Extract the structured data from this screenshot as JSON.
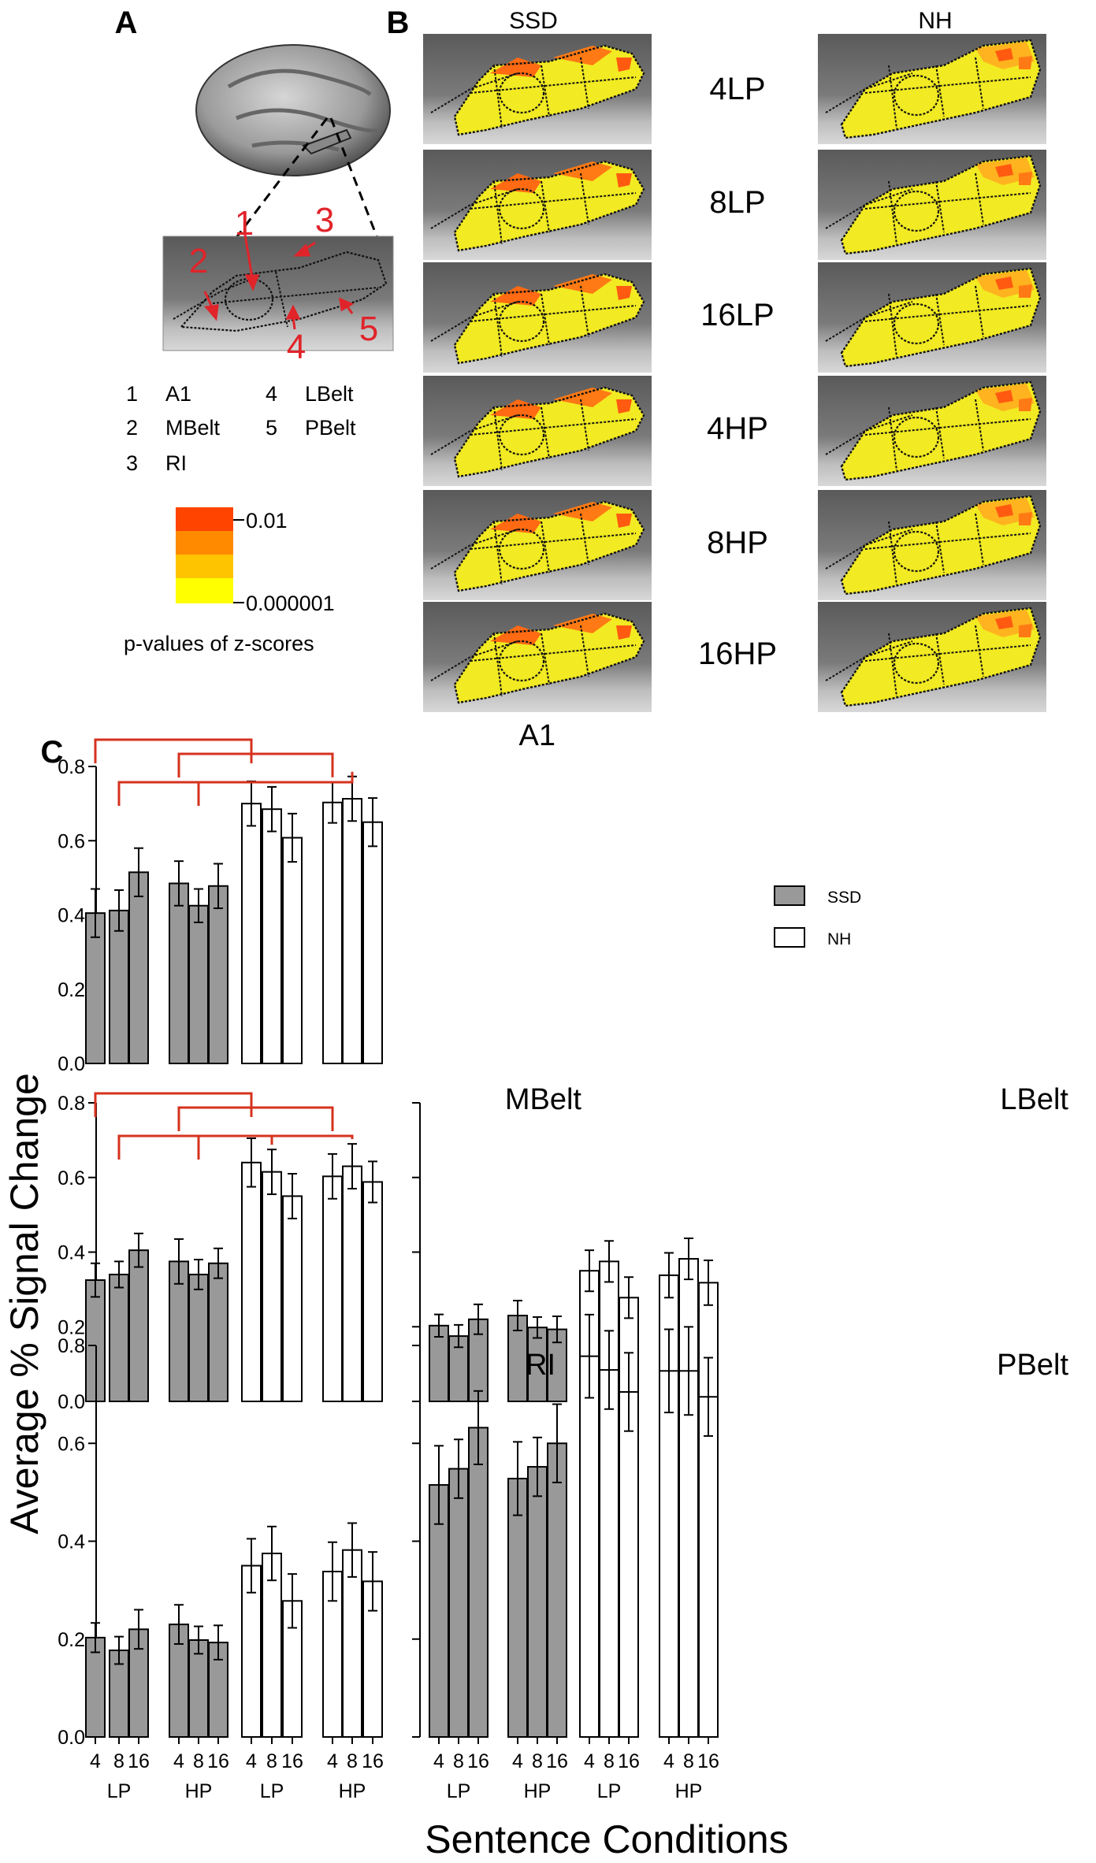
{
  "panels": {
    "a": "A",
    "b": "B",
    "c": "C"
  },
  "panel_a": {
    "region_numbers": [
      "1",
      "2",
      "3",
      "4",
      "5"
    ],
    "region_key": [
      {
        "num": "1",
        "name": "A1"
      },
      {
        "num": "2",
        "name": "MBelt"
      },
      {
        "num": "3",
        "name": "RI"
      },
      {
        "num": "4",
        "name": "LBelt"
      },
      {
        "num": "5",
        "name": "PBelt"
      }
    ],
    "colorbar": {
      "colors": [
        "#ff4400",
        "#ff8a00",
        "#ffc400",
        "#ffff00"
      ],
      "top_label": "0.01",
      "bottom_label": "0.000001",
      "caption": "p-values of z-scores"
    }
  },
  "panel_b": {
    "columns": [
      "SSD",
      "NH"
    ],
    "conditions": [
      "4LP",
      "8LP",
      "16LP",
      "4HP",
      "8HP",
      "16HP"
    ]
  },
  "chart_data": {
    "type": "bar",
    "ylabel": "Average % Signal Change",
    "xlabel": "Sentence Conditions",
    "ylim": [
      0,
      0.8
    ],
    "yticks": [
      "0.0",
      "0.2",
      "0.4",
      "0.6",
      "0.8"
    ],
    "legend": {
      "placement": "right",
      "entries": [
        "SSD",
        "NH"
      ]
    },
    "group_colors": {
      "SSD": "#999999",
      "NH": "#ffffff"
    },
    "x_tick_labels": [
      "4",
      "8",
      "16",
      "4",
      "8",
      "16",
      "4",
      "8",
      "16",
      "4",
      "8",
      "16"
    ],
    "x_group_labels": [
      "LP",
      "HP",
      "LP",
      "HP"
    ],
    "bar_groups": [
      "SSD",
      "SSD",
      "SSD",
      "SSD",
      "SSD",
      "SSD",
      "NH",
      "NH",
      "NH",
      "NH",
      "NH",
      "NH"
    ],
    "panels": [
      {
        "title": "A1",
        "values": [
          0.405,
          0.412,
          0.515,
          0.485,
          0.425,
          0.478,
          0.7,
          0.685,
          0.608,
          0.703,
          0.713,
          0.65
        ],
        "errors": [
          0.065,
          0.055,
          0.065,
          0.06,
          0.045,
          0.06,
          0.06,
          0.06,
          0.065,
          0.055,
          0.06,
          0.065
        ],
        "significance": [
          [
            0,
            6
          ],
          [
            3,
            9
          ],
          [
            1,
            7
          ],
          [
            4,
            10
          ]
        ]
      },
      {
        "title": "MBelt",
        "values": [
          0.325,
          0.34,
          0.405,
          0.375,
          0.34,
          0.37,
          0.64,
          0.615,
          0.55,
          0.603,
          0.63,
          0.588
        ],
        "errors": [
          0.045,
          0.035,
          0.045,
          0.06,
          0.04,
          0.04,
          0.065,
          0.06,
          0.06,
          0.06,
          0.06,
          0.055
        ],
        "significance": [
          [
            0,
            6
          ],
          [
            3,
            9
          ],
          [
            1,
            7
          ],
          [
            4,
            10
          ]
        ]
      },
      {
        "title": "LBelt",
        "values": [
          0.203,
          0.175,
          0.22,
          0.23,
          0.198,
          0.193,
          0.35,
          0.375,
          0.278,
          0.338,
          0.382,
          0.318
        ],
        "errors": [
          0.03,
          0.03,
          0.04,
          0.04,
          0.028,
          0.035,
          0.055,
          0.055,
          0.055,
          0.06,
          0.055,
          0.06
        ],
        "significance": []
      },
      {
        "title": "RI",
        "values": [
          0.203,
          0.177,
          0.22,
          0.23,
          0.198,
          0.193,
          0.35,
          0.375,
          0.278,
          0.338,
          0.382,
          0.318
        ],
        "errors": [
          0.03,
          0.028,
          0.04,
          0.04,
          0.028,
          0.035,
          0.055,
          0.055,
          0.055,
          0.06,
          0.055,
          0.06
        ],
        "significance": []
      },
      {
        "title": "PBelt",
        "values": [
          0.515,
          0.548,
          0.632,
          0.528,
          0.552,
          0.6,
          0.778,
          0.75,
          0.705,
          0.748,
          0.748,
          0.695
        ],
        "errors": [
          0.08,
          0.06,
          0.075,
          0.075,
          0.06,
          0.08,
          0.085,
          0.08,
          0.08,
          0.085,
          0.09,
          0.08
        ],
        "significance": []
      }
    ]
  }
}
